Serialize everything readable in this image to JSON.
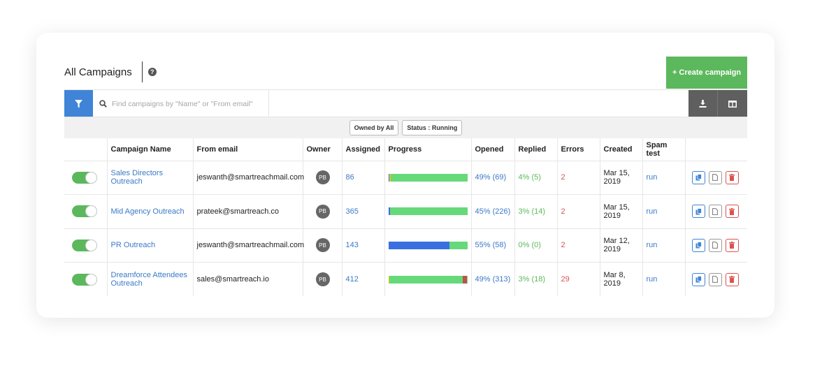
{
  "header": {
    "title": "All Campaigns",
    "create_label": "+ Create campaign"
  },
  "search": {
    "placeholder": "Find campaigns by \"Name\" or \"From email\""
  },
  "filters": {
    "owned": "Owned by All",
    "status": "Status : Running"
  },
  "columns": [
    "",
    "Campaign Name",
    "From email",
    "Owner",
    "Assigned",
    "Progress",
    "Opened",
    "Replied",
    "Errors",
    "Created",
    "Spam test",
    ""
  ],
  "rows": [
    {
      "enabled": true,
      "name": "Sales Directors Outreach",
      "from_email": "jeswanth@smartreachmail.com",
      "owner": "PB",
      "assigned": "86",
      "progress": [
        {
          "color": "#3a6fe0",
          "fraction": 0.015
        },
        {
          "color": "#f0c419",
          "fraction": 0.02
        },
        {
          "color": "#66d97a",
          "fraction": 0.965
        }
      ],
      "opened": "49% (69)",
      "replied": "4% (5)",
      "errors": "2",
      "created": "Mar 15, 2019",
      "spam_test": "run"
    },
    {
      "enabled": true,
      "name": "Mid Agency Outreach",
      "from_email": "prateek@smartreach.co",
      "owner": "PB",
      "assigned": "365",
      "progress": [
        {
          "color": "#3a6fe0",
          "fraction": 0.025
        },
        {
          "color": "#66d97a",
          "fraction": 0.975
        }
      ],
      "opened": "45% (226)",
      "replied": "3% (14)",
      "errors": "2",
      "created": "Mar 15, 2019",
      "spam_test": "run"
    },
    {
      "enabled": true,
      "name": "PR Outreach",
      "from_email": "jeswanth@smartreachmail.com",
      "owner": "PB",
      "assigned": "143",
      "progress": [
        {
          "color": "#3a6fe0",
          "fraction": 0.77
        },
        {
          "color": "#66d97a",
          "fraction": 0.23
        }
      ],
      "opened": "55% (58)",
      "replied": "0% (0)",
      "errors": "2",
      "created": "Mar 12, 2019",
      "spam_test": "run"
    },
    {
      "enabled": true,
      "name": "Dreamforce Attendees Outreach",
      "from_email": "sales@smartreach.io",
      "owner": "PB",
      "assigned": "412",
      "progress": [
        {
          "color": "#f0c419",
          "fraction": 0.015
        },
        {
          "color": "#66d97a",
          "fraction": 0.925
        },
        {
          "color": "#c0504d",
          "fraction": 0.06
        }
      ],
      "opened": "49% (313)",
      "replied": "3% (18)",
      "errors": "29",
      "created": "Mar 8, 2019",
      "spam_test": "run"
    }
  ],
  "icons": {
    "help": "help-circle-icon",
    "filter": "filter-icon",
    "search": "search-icon",
    "download": "download-icon",
    "columns": "columns-icon",
    "copy": "copy-icon",
    "file": "file-icon",
    "delete": "trash-icon"
  },
  "colors": {
    "primary": "#3f84d7",
    "success": "#5cb85c",
    "danger": "#d9534f",
    "link": "#3a79c7",
    "dark_button": "#5f5f5f"
  }
}
